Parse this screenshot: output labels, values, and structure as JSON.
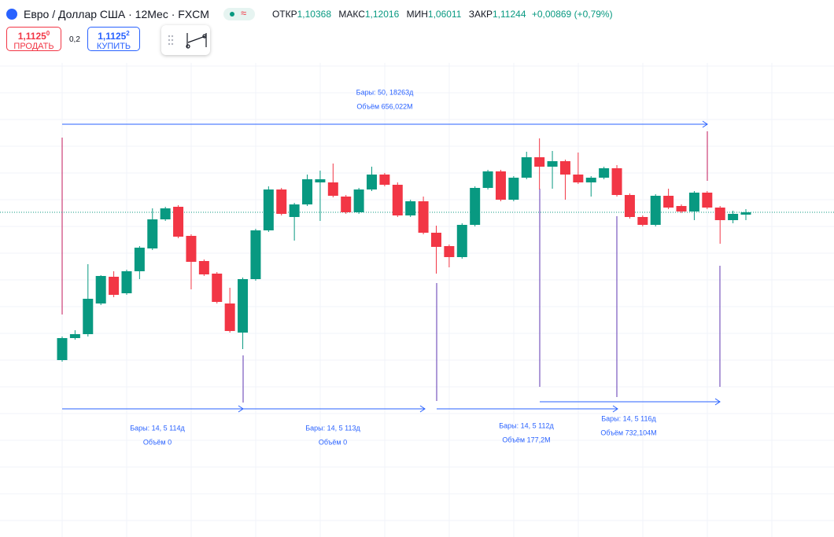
{
  "header": {
    "title": "Евро / Доллар США · 12Мес · FXCM",
    "open_label": "ОТКР",
    "open": "1,10368",
    "high_label": "МАКС",
    "high": "1,12016",
    "low_label": "МИН",
    "low": "1,06011",
    "close_label": "ЗАКР",
    "close": "1,11244",
    "change": "+0,00869 (+0,79%)"
  },
  "trade": {
    "sell_price": "1,1125",
    "sell_digit": "0",
    "sell_label": "ПРОДАТЬ",
    "spread": "0,2",
    "buy_price": "1,1125",
    "buy_digit": "2",
    "buy_label": "КУПИТЬ"
  },
  "measures": [
    {
      "bars": "Бары: 50, 18263д",
      "volume": "Объём 656,022M"
    },
    {
      "bars": "Бары: 14, 5 114д",
      "volume": "Объём 0"
    },
    {
      "bars": "Бары: 14, 5 113д",
      "volume": "Объём 0"
    },
    {
      "bars": "Бары: 14, 5 112д",
      "volume": "Объём 177,2M"
    },
    {
      "bars": "Бары: 14, 5 116д",
      "volume": "Объём 732,104M"
    }
  ],
  "candles": {
    "ylim": [
      0.292,
      1.492
    ],
    "up_color": "#089981",
    "down_color": "#f23645",
    "ohlc": [
      [
        0.736,
        0.796,
        0.732,
        0.792
      ],
      [
        0.792,
        0.812,
        0.788,
        0.802
      ],
      [
        0.802,
        0.98,
        0.796,
        0.892
      ],
      [
        0.88,
        0.952,
        0.876,
        0.95
      ],
      [
        0.948,
        0.962,
        0.896,
        0.902
      ],
      [
        0.906,
        0.966,
        0.902,
        0.962
      ],
      [
        0.962,
        1.026,
        0.942,
        1.022
      ],
      [
        1.02,
        1.122,
        1.016,
        1.094
      ],
      [
        1.094,
        1.126,
        1.09,
        1.122
      ],
      [
        1.126,
        1.13,
        1.046,
        1.05
      ],
      [
        1.052,
        1.056,
        0.916,
        0.986
      ],
      [
        0.988,
        0.992,
        0.95,
        0.954
      ],
      [
        0.956,
        0.96,
        0.88,
        0.884
      ],
      [
        0.88,
        0.92,
        0.806,
        0.81
      ],
      [
        0.806,
        0.946,
        0.764,
        0.942
      ],
      [
        0.942,
        1.07,
        0.938,
        1.066
      ],
      [
        1.066,
        1.178,
        1.062,
        1.17
      ],
      [
        1.17,
        1.174,
        1.104,
        1.108
      ],
      [
        1.1,
        1.136,
        1.04,
        1.132
      ],
      [
        1.132,
        1.208,
        1.128,
        1.196
      ],
      [
        1.188,
        1.218,
        1.09,
        1.196
      ],
      [
        1.188,
        1.236,
        1.15,
        1.154
      ],
      [
        1.152,
        1.156,
        1.108,
        1.112
      ],
      [
        1.112,
        1.174,
        1.108,
        1.17
      ],
      [
        1.17,
        1.228,
        1.166,
        1.208
      ],
      [
        1.208,
        1.212,
        1.178,
        1.182
      ],
      [
        1.182,
        1.188,
        1.1,
        1.104
      ],
      [
        1.104,
        1.144,
        1.1,
        1.14
      ],
      [
        1.14,
        1.152,
        1.056,
        1.06
      ],
      [
        1.06,
        1.078,
        0.956,
        1.024
      ],
      [
        1.026,
        1.03,
        0.972,
        0.998
      ],
      [
        0.998,
        1.084,
        0.994,
        1.08
      ],
      [
        1.08,
        1.178,
        1.076,
        1.174
      ],
      [
        1.174,
        1.22,
        1.17,
        1.216
      ],
      [
        1.216,
        1.22,
        1.14,
        1.144
      ],
      [
        1.144,
        1.204,
        1.14,
        1.2
      ],
      [
        1.2,
        1.266,
        1.196,
        1.252
      ],
      [
        1.252,
        1.3,
        1.17,
        1.228
      ],
      [
        1.228,
        1.268,
        1.172,
        1.242
      ],
      [
        1.242,
        1.246,
        1.144,
        1.208
      ],
      [
        1.208,
        1.264,
        1.184,
        1.188
      ],
      [
        1.188,
        1.204,
        1.152,
        1.2
      ],
      [
        1.2,
        1.228,
        1.196,
        1.224
      ],
      [
        1.224,
        1.232,
        1.152,
        1.156
      ],
      [
        1.156,
        1.16,
        1.096,
        1.1
      ],
      [
        1.1,
        1.104,
        1.076,
        1.08
      ],
      [
        1.08,
        1.158,
        1.076,
        1.154
      ],
      [
        1.154,
        1.172,
        1.12,
        1.124
      ],
      [
        1.128,
        1.132,
        1.11,
        1.114
      ],
      [
        1.114,
        1.166,
        1.092,
        1.162
      ],
      [
        1.162,
        1.166,
        1.12,
        1.124
      ],
      [
        1.124,
        1.128,
        1.032,
        1.092
      ],
      [
        1.092,
        1.116,
        1.084,
        1.108
      ],
      [
        1.106,
        1.12,
        1.092,
        1.112
      ]
    ]
  }
}
